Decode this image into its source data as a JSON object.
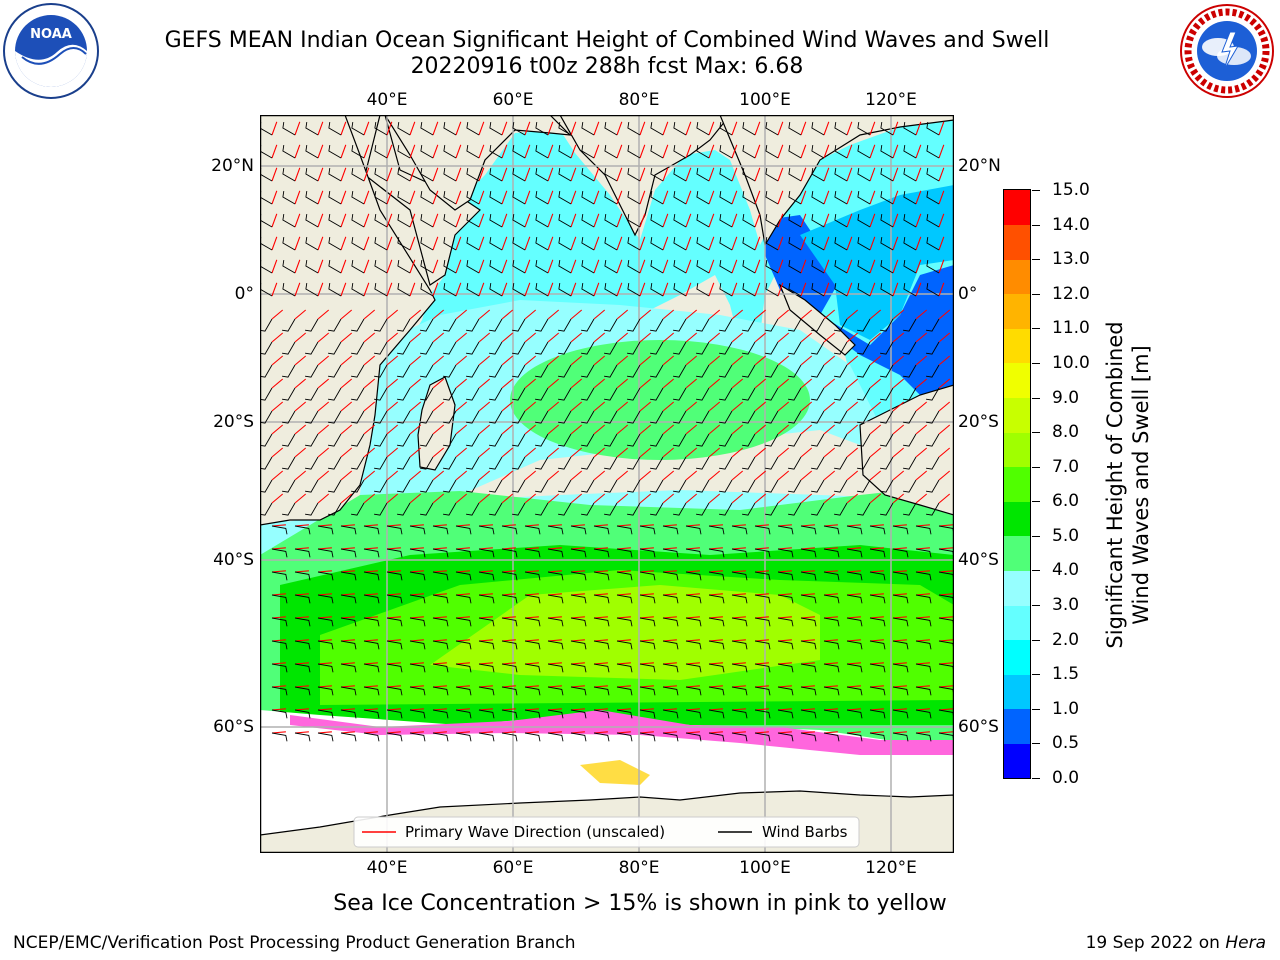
{
  "title": {
    "line1": "GEFS MEAN Indian Ocean Significant Height of Combined Wind Waves and Swell",
    "line2": "20220916 t00z 288h fcst   Max: 6.68"
  },
  "axes": {
    "lon_ticks": [
      "40°E",
      "60°E",
      "80°E",
      "100°E",
      "120°E"
    ],
    "lat_ticks_left": [
      "20°N",
      "0°",
      "20°S",
      "40°S",
      "60°S"
    ],
    "lat_ticks_right": [
      "20°N",
      "0°",
      "20°S",
      "40°S",
      "60°S"
    ]
  },
  "legend": {
    "wave_label": "Primary Wave Direction (unscaled)",
    "wind_label": "Wind Barbs",
    "wave_color": "#ff0000",
    "wind_color": "#000000"
  },
  "colorbar": {
    "title_line1": "Significant Height of Combined",
    "title_line2": "Wind Waves and Swell [m]",
    "labels": [
      "0.0",
      "0.5",
      "1.0",
      "1.5",
      "2.0",
      "3.0",
      "4.0",
      "5.0",
      "6.0",
      "7.0",
      "8.0",
      "9.0",
      "10.0",
      "11.0",
      "12.0",
      "13.0",
      "14.0",
      "15.0"
    ],
    "colors": [
      "#0000ff",
      "#0064ff",
      "#00c8ff",
      "#00ffff",
      "#64ffff",
      "#96ffff",
      "#50ff78",
      "#00e600",
      "#50ff00",
      "#a0ff00",
      "#c8ff00",
      "#f0ff00",
      "#ffdc00",
      "#ffb400",
      "#ff8c00",
      "#ff5000",
      "#ff0000"
    ]
  },
  "caption": "Sea Ice Concentration > 15% is shown in pink to yellow",
  "footer": {
    "left": "NCEP/EMC/Verification Post Processing Product Generation Branch",
    "date": "19 Sep 2022 on ",
    "machine": "Hera"
  },
  "logos": {
    "noaa_text": "NOAA",
    "noaa_ring": "NATIONAL OCEANIC AND ATMOSPHERIC ADMINISTRATION · U.S. DEPARTMENT OF COMMERCE",
    "nws_ring": "NATIONAL WEATHER SERVICE"
  },
  "map_colors": {
    "land": "#efedde",
    "ice_free_white": "#ffffff",
    "grid": "#b0b0b0"
  }
}
